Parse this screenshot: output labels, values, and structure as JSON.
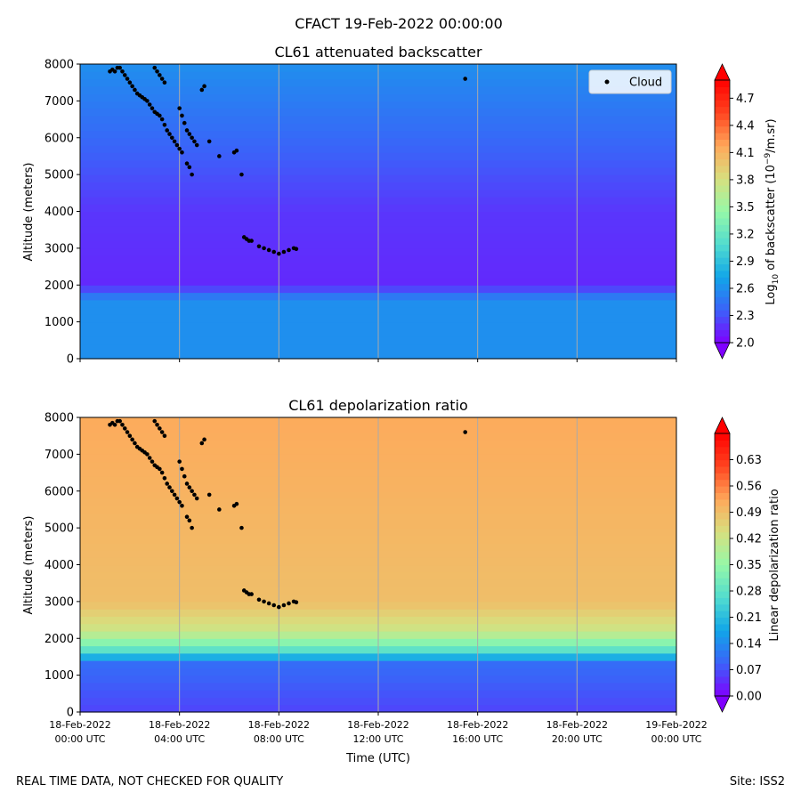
{
  "figure": {
    "suptitle": "CFACT 19-Feb-2022 00:00:00",
    "footer_left": "REAL TIME DATA, NOT CHECKED FOR QUALITY",
    "footer_right": "Site: ISS2",
    "colors": {
      "background": "#ffffff",
      "cloud_marker": "#000000",
      "gridline": "#aaaaaa"
    },
    "colormap": [
      "#7f00ff",
      "#3b62f9",
      "#11a6e8",
      "#51dccf",
      "#95f8a8",
      "#d7e07f",
      "#ffa85a",
      "#ff4520",
      "#ff0000"
    ]
  },
  "chart_data": [
    {
      "type": "heatmap",
      "title": "CL61 attenuated backscatter",
      "xlabel": "",
      "ylabel": "Altitude (meters)",
      "ylim": [
        0,
        8000
      ],
      "yticks": [
        "0",
        "1000",
        "2000",
        "3000",
        "4000",
        "5000",
        "6000",
        "7000",
        "8000"
      ],
      "xlim_hours": [
        0,
        24
      ],
      "colorbar": {
        "label_prefix": "Log",
        "label_sub": "10",
        "label_mid": " of backscatter (10",
        "label_sup": "−9",
        "label_suffix": "/m.sr)",
        "range": [
          2.0,
          4.9
        ],
        "ticks": [
          "2.0",
          "2.3",
          "2.6",
          "2.9",
          "3.2",
          "3.5",
          "3.8",
          "4.1",
          "4.4",
          "4.7"
        ],
        "extend": "both"
      },
      "legend": {
        "entries": [
          "Cloud"
        ],
        "placement": "upper right"
      },
      "value_profile": [
        {
          "altitude": 0,
          "value": 2.6
        },
        {
          "altitude": 1600,
          "value": 2.6
        },
        {
          "altitude": 2000,
          "value": 2.15
        },
        {
          "altitude": 4000,
          "value": 2.2
        },
        {
          "altitude": 8000,
          "value": 2.6
        }
      ]
    },
    {
      "type": "heatmap",
      "title": "CL61 depolarization ratio",
      "xlabel": "Time (UTC)",
      "ylabel": "Altitude (meters)",
      "ylim": [
        0,
        8000
      ],
      "yticks": [
        "0",
        "1000",
        "2000",
        "3000",
        "4000",
        "5000",
        "6000",
        "7000",
        "8000"
      ],
      "xlim_hours": [
        0,
        24
      ],
      "xticks": [
        {
          "hour": 0,
          "date": "18-Feb-2022",
          "time": "00:00 UTC"
        },
        {
          "hour": 4,
          "date": "18-Feb-2022",
          "time": "04:00 UTC"
        },
        {
          "hour": 8,
          "date": "18-Feb-2022",
          "time": "08:00 UTC"
        },
        {
          "hour": 12,
          "date": "18-Feb-2022",
          "time": "12:00 UTC"
        },
        {
          "hour": 16,
          "date": "18-Feb-2022",
          "time": "16:00 UTC"
        },
        {
          "hour": 20,
          "date": "18-Feb-2022",
          "time": "20:00 UTC"
        },
        {
          "hour": 24,
          "date": "19-Feb-2022",
          "time": "00:00 UTC"
        }
      ],
      "colorbar": {
        "label": "Linear depolarization ratio",
        "range": [
          0.0,
          0.7
        ],
        "ticks": [
          "0.00",
          "0.07",
          "0.14",
          "0.21",
          "0.28",
          "0.35",
          "0.42",
          "0.49",
          "0.56",
          "0.63"
        ],
        "extend": "both"
      },
      "value_profile": [
        {
          "altitude": 0,
          "value": 0.06
        },
        {
          "altitude": 1300,
          "value": 0.1
        },
        {
          "altitude": 1700,
          "value": 0.28
        },
        {
          "altitude": 2200,
          "value": 0.42
        },
        {
          "altitude": 3000,
          "value": 0.49
        },
        {
          "altitude": 8000,
          "value": 0.52
        }
      ]
    }
  ],
  "cloud_points": [
    [
      1.2,
      7800
    ],
    [
      1.3,
      7850
    ],
    [
      1.4,
      7800
    ],
    [
      1.5,
      7900
    ],
    [
      1.6,
      7900
    ],
    [
      1.7,
      7800
    ],
    [
      1.8,
      7700
    ],
    [
      1.9,
      7600
    ],
    [
      2.0,
      7500
    ],
    [
      2.1,
      7400
    ],
    [
      2.2,
      7300
    ],
    [
      2.3,
      7200
    ],
    [
      2.4,
      7150
    ],
    [
      2.5,
      7100
    ],
    [
      2.6,
      7050
    ],
    [
      2.7,
      7000
    ],
    [
      2.8,
      6900
    ],
    [
      2.9,
      6800
    ],
    [
      3.0,
      6700
    ],
    [
      3.1,
      6650
    ],
    [
      3.2,
      6600
    ],
    [
      3.3,
      6500
    ],
    [
      3.4,
      6350
    ],
    [
      3.5,
      6200
    ],
    [
      3.6,
      6100
    ],
    [
      3.7,
      6000
    ],
    [
      3.8,
      5900
    ],
    [
      3.9,
      5800
    ],
    [
      4.0,
      5700
    ],
    [
      4.1,
      5600
    ],
    [
      3.0,
      7900
    ],
    [
      3.1,
      7800
    ],
    [
      3.2,
      7700
    ],
    [
      3.3,
      7600
    ],
    [
      3.4,
      7500
    ],
    [
      4.0,
      6800
    ],
    [
      4.1,
      6600
    ],
    [
      4.2,
      6400
    ],
    [
      4.3,
      6200
    ],
    [
      4.4,
      6100
    ],
    [
      4.5,
      6000
    ],
    [
      4.6,
      5900
    ],
    [
      4.7,
      5800
    ],
    [
      4.3,
      5300
    ],
    [
      4.4,
      5200
    ],
    [
      4.5,
      5000
    ],
    [
      4.9,
      7300
    ],
    [
      5.0,
      7400
    ],
    [
      5.2,
      5900
    ],
    [
      5.6,
      5500
    ],
    [
      6.2,
      5600
    ],
    [
      6.3,
      5650
    ],
    [
      6.5,
      5000
    ],
    [
      6.6,
      3300
    ],
    [
      6.7,
      3250
    ],
    [
      6.8,
      3200
    ],
    [
      6.9,
      3200
    ],
    [
      7.2,
      3050
    ],
    [
      7.4,
      3000
    ],
    [
      7.6,
      2950
    ],
    [
      7.8,
      2900
    ],
    [
      8.0,
      2850
    ],
    [
      8.2,
      2900
    ],
    [
      8.4,
      2950
    ],
    [
      8.6,
      3000
    ],
    [
      8.7,
      2980
    ],
    [
      15.5,
      7600
    ]
  ]
}
